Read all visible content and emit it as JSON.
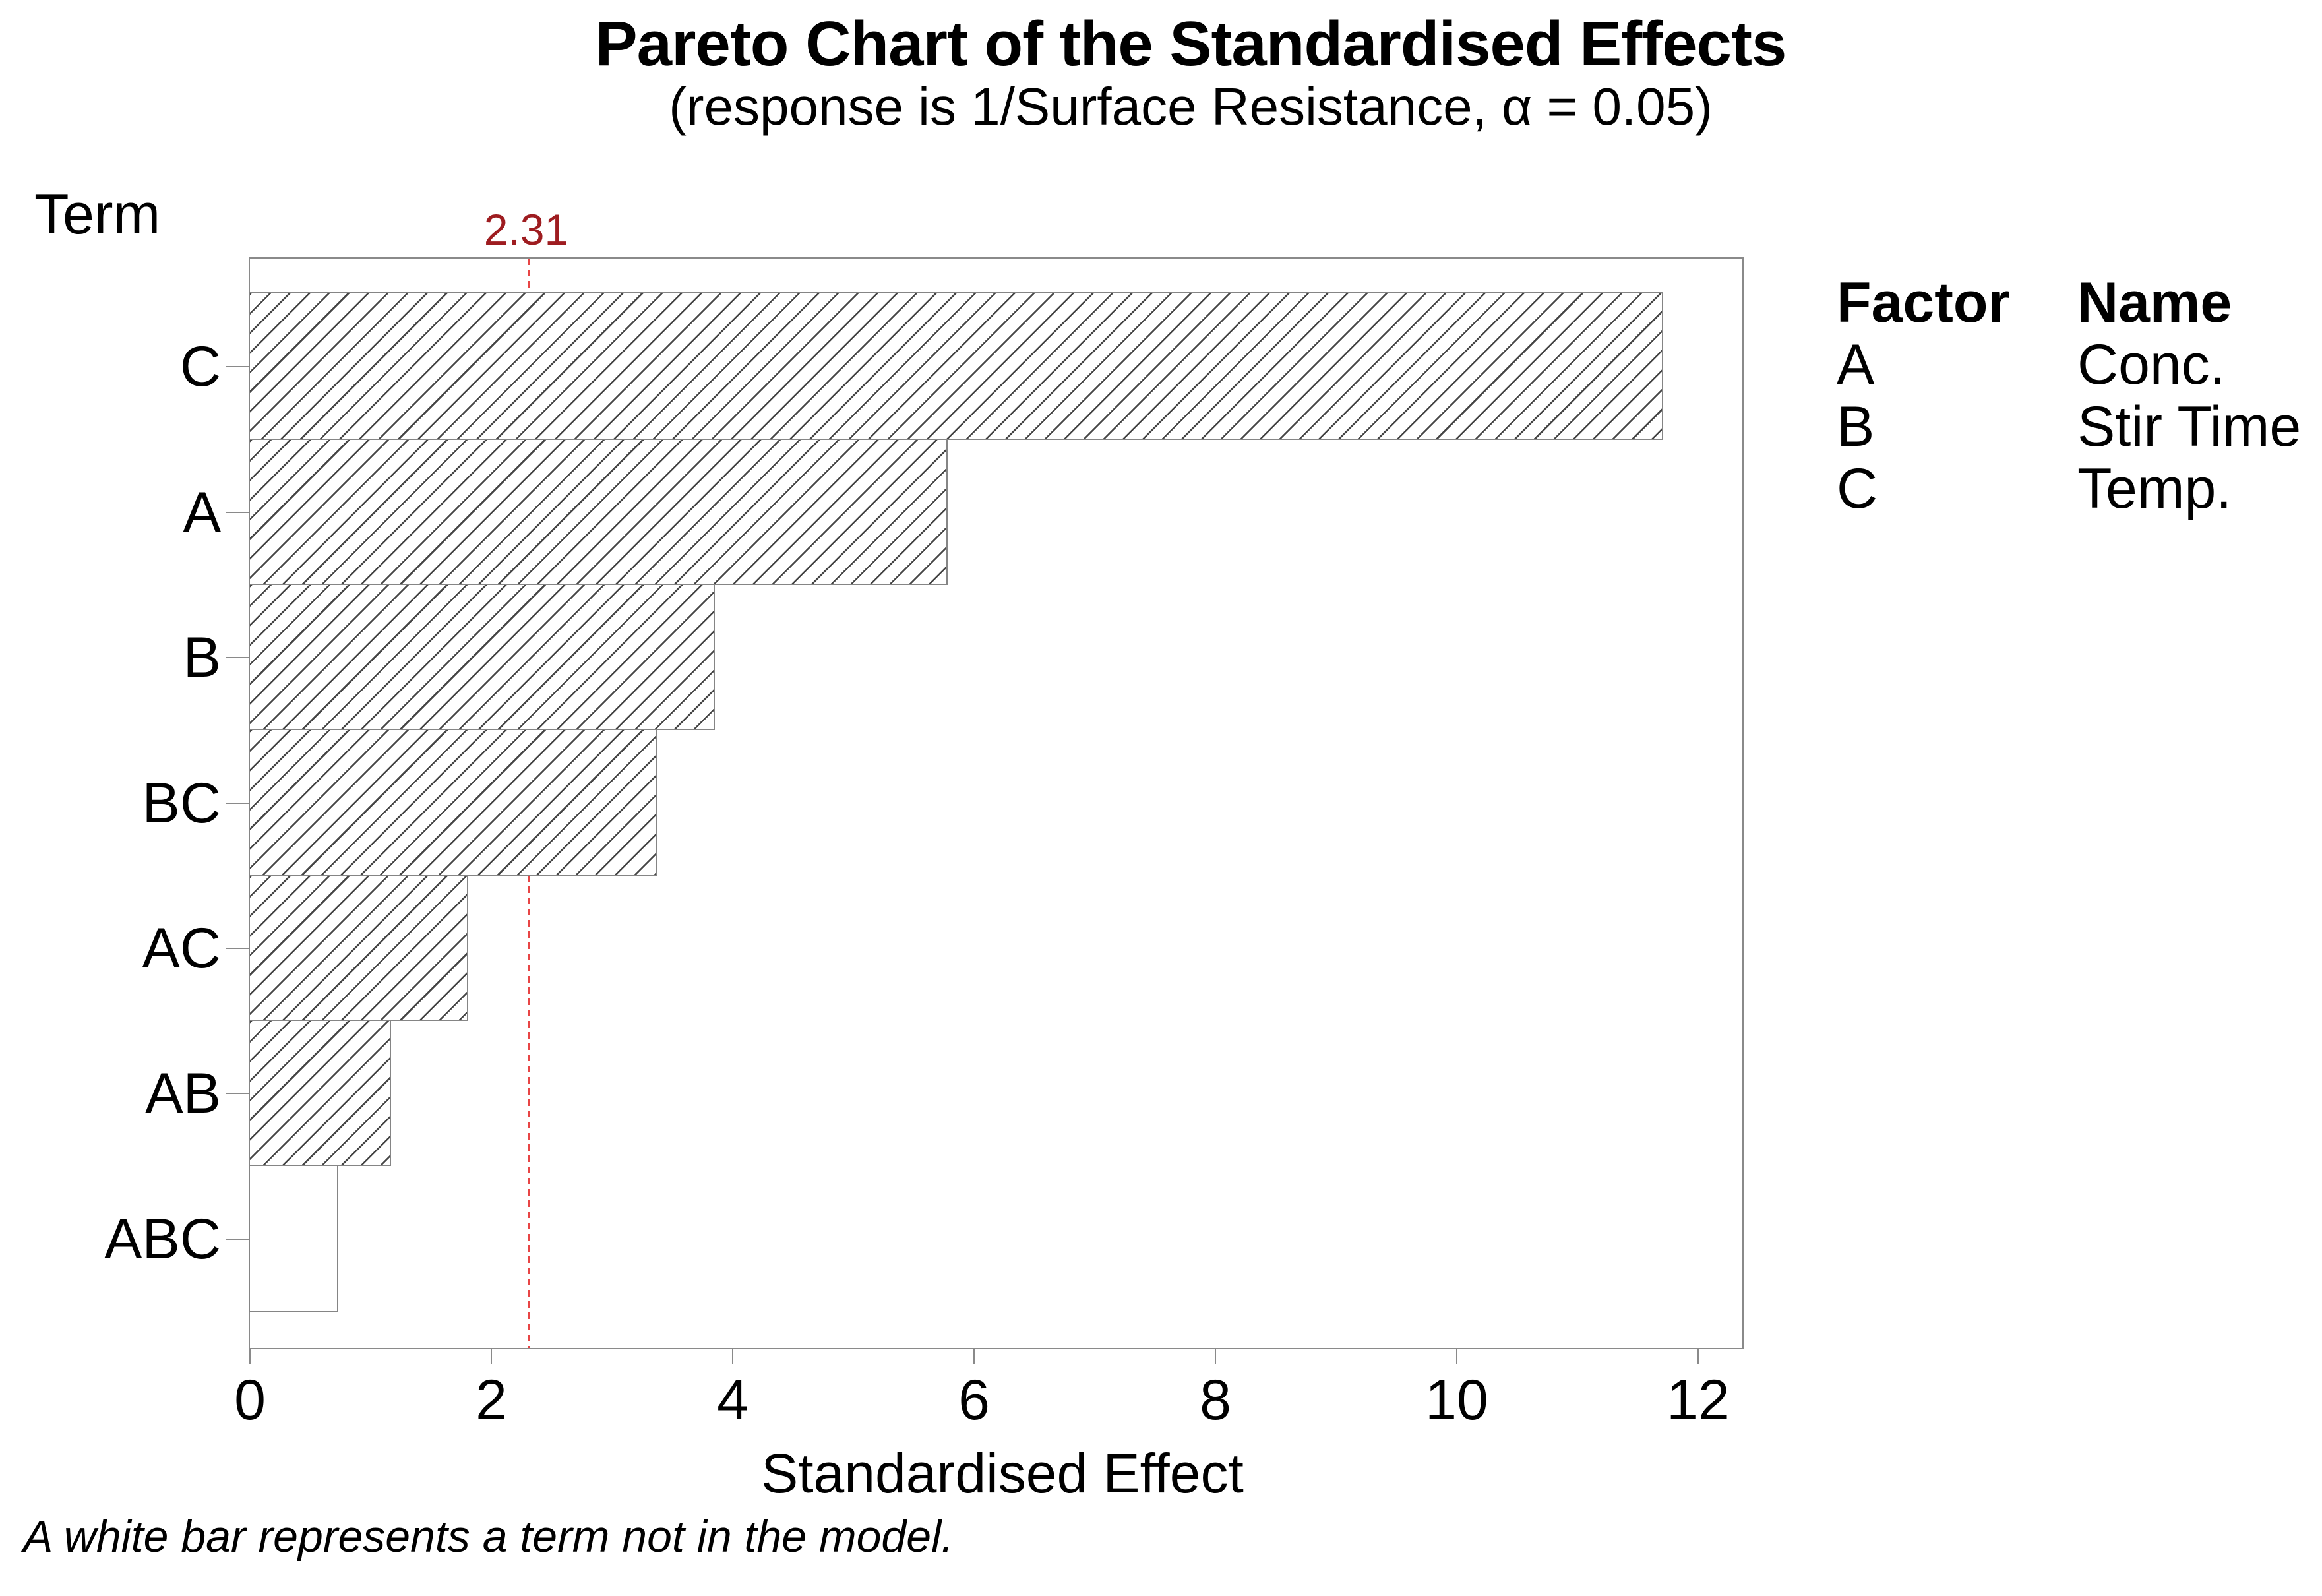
{
  "header": {
    "title": "Pareto Chart of the Standardised Effects",
    "subtitle": "(response is 1/Surface Resistance, α = 0.05)"
  },
  "chart_data": {
    "type": "bar",
    "orientation": "horizontal",
    "title": "Pareto Chart of the Standardised Effects",
    "subtitle": "(response is 1/Surface Resistance, α = 0.05)",
    "y_axis_header": "Term",
    "xlabel": "Standardised Effect",
    "categories": [
      "C",
      "A",
      "B",
      "BC",
      "AC",
      "AB",
      "ABC"
    ],
    "values": [
      11.7,
      5.77,
      3.84,
      3.36,
      1.8,
      1.16,
      0.72
    ],
    "in_model": [
      true,
      true,
      true,
      true,
      true,
      true,
      false
    ],
    "reference_line_value": 2.31,
    "reference_label": "2.31",
    "alpha": 0.05,
    "xlim": [
      0,
      12.39
    ],
    "x_ticks": [
      0,
      2,
      4,
      6,
      8,
      10,
      12
    ],
    "grid": false,
    "legend_position": "right"
  },
  "legend": {
    "factor_header": "Factor",
    "name_header": "Name",
    "rows": [
      {
        "factor": "A",
        "name": "Conc."
      },
      {
        "factor": "B",
        "name": "Stir Time"
      },
      {
        "factor": "C",
        "name": "Temp."
      }
    ]
  },
  "footnote": "A white bar represents a term not in the model.",
  "colors": {
    "reference_line": "#e84545",
    "reference_label_text": "#9e1c20",
    "bar_border": "#858585",
    "hatch_line": "#454545",
    "plot_border": "#8a8a8a",
    "text": "#000000",
    "background": "#ffffff"
  }
}
